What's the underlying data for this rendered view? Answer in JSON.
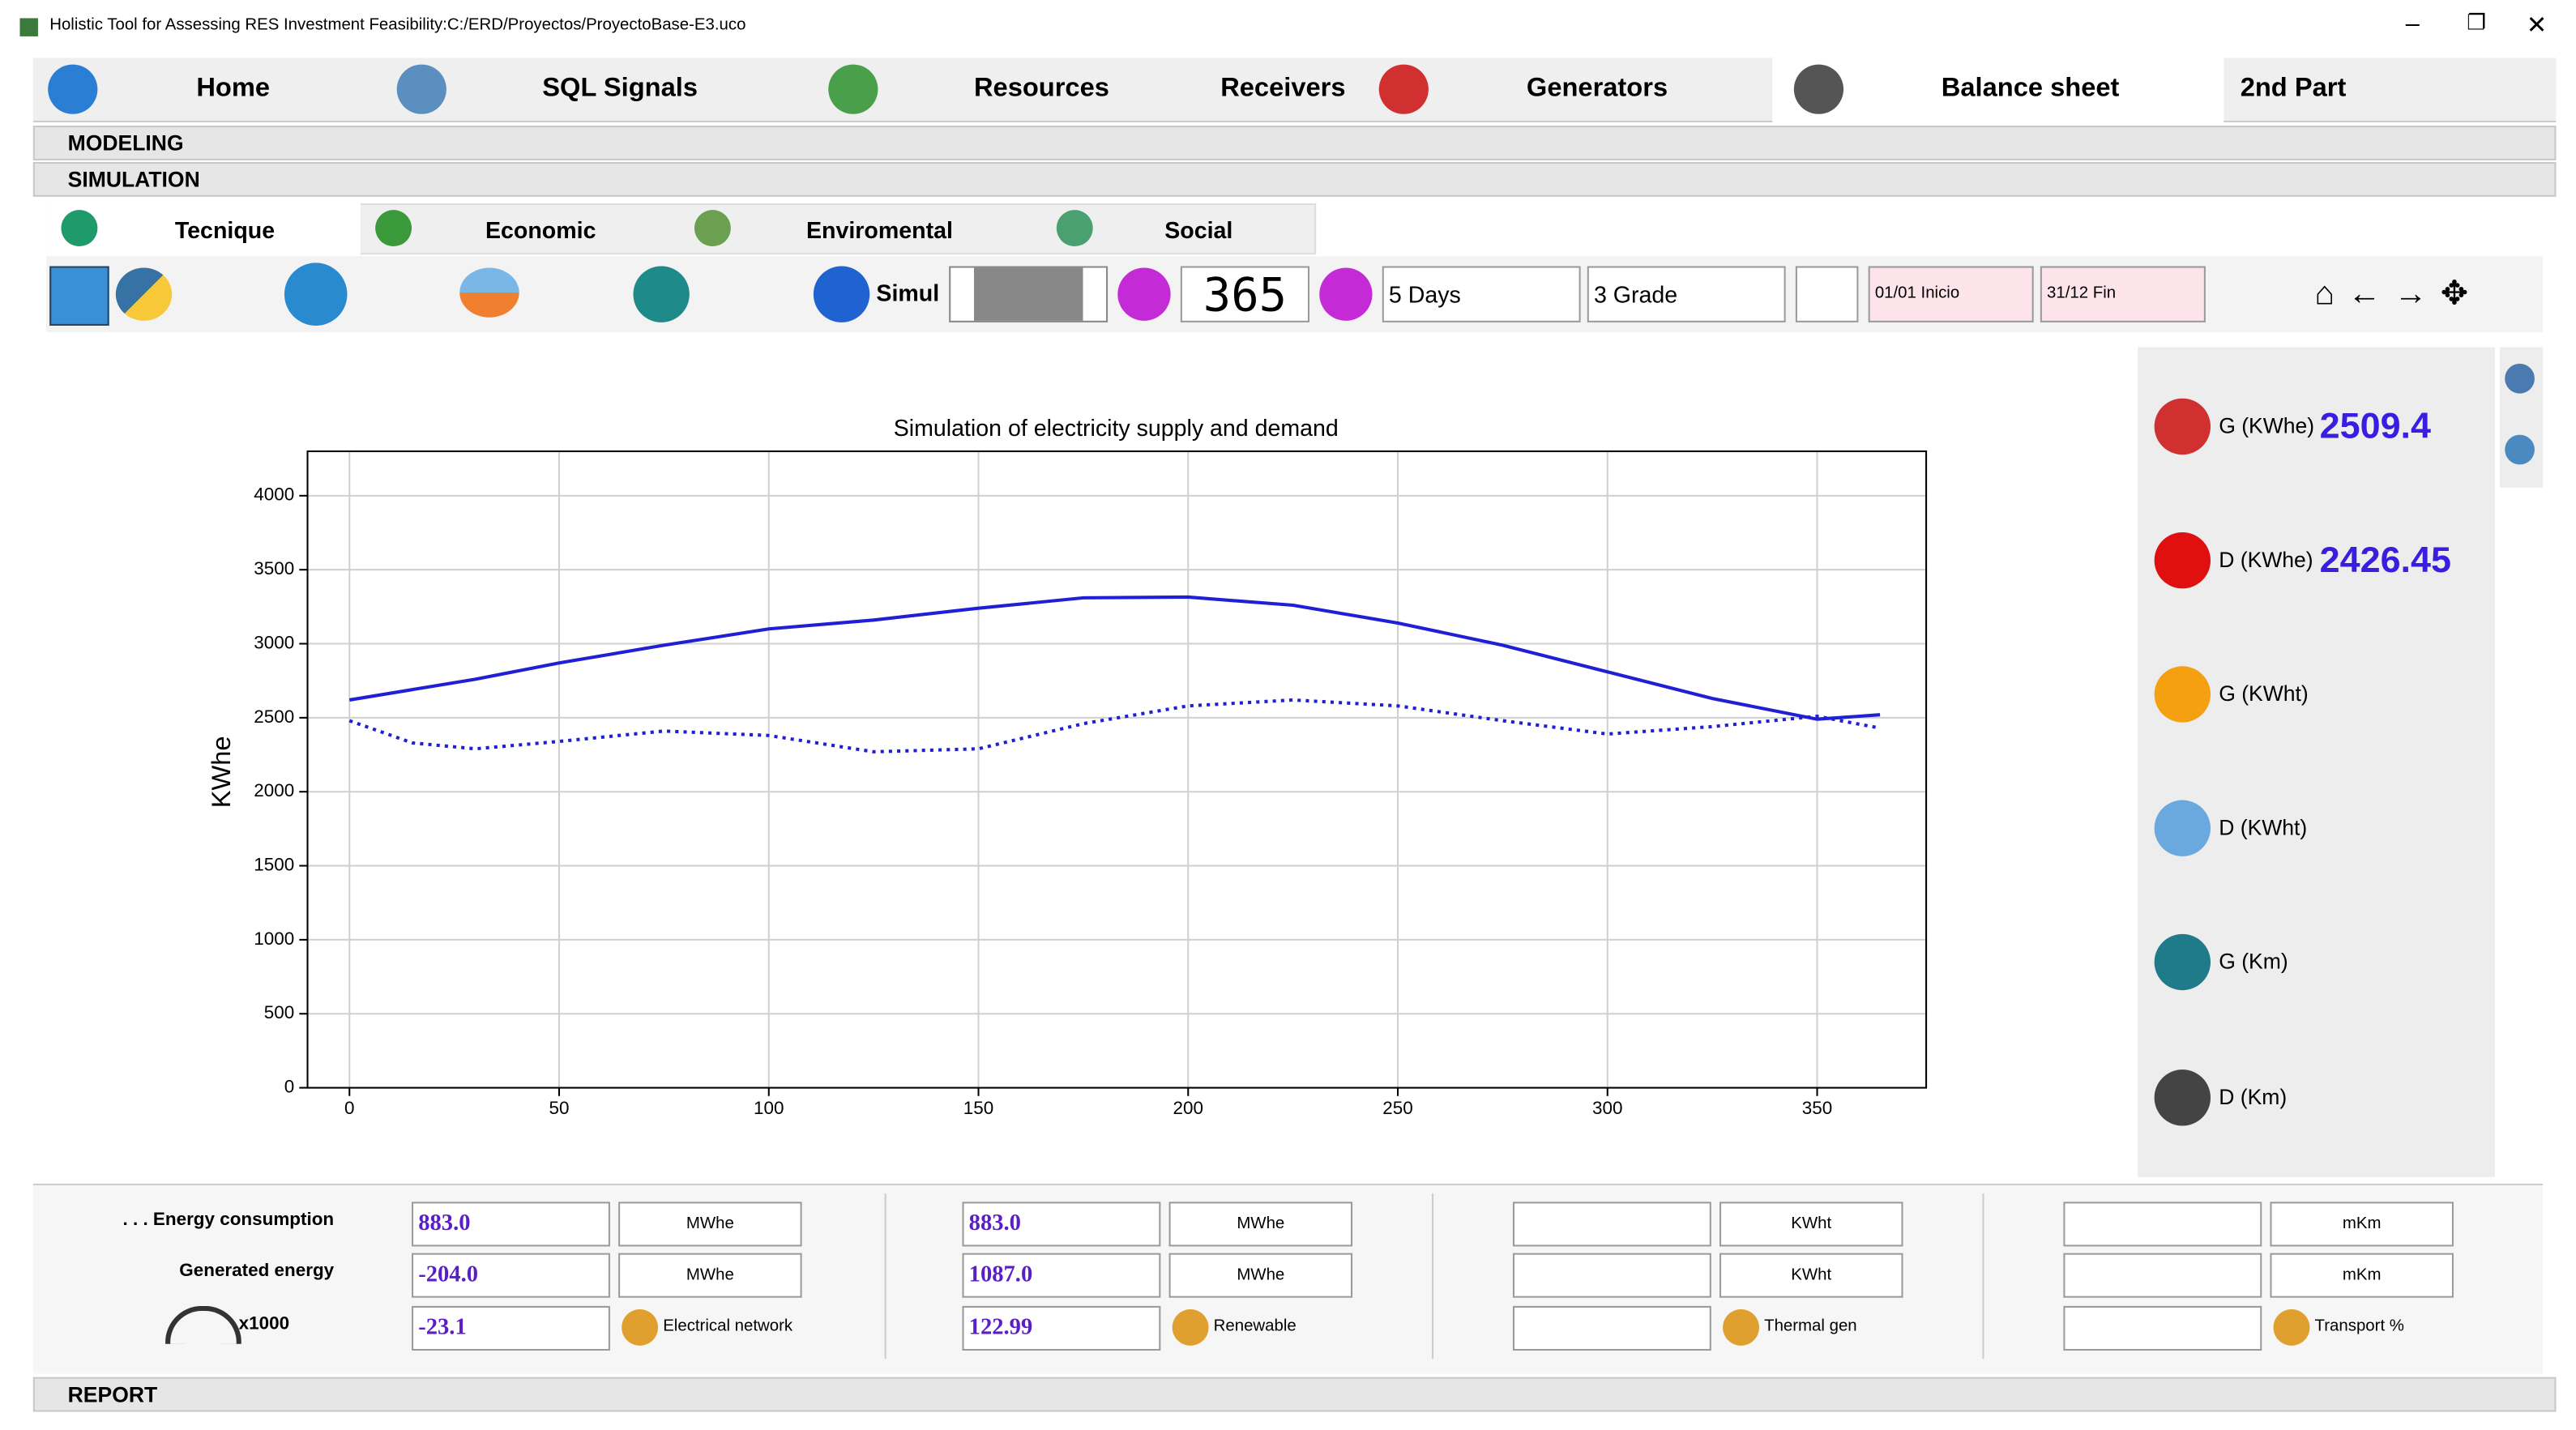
{
  "window": {
    "title": "Holistic Tool for Assessing RES Investment Feasibility:C:/ERD/Proyectos/ProyectoBase-E3.uco"
  },
  "main_tabs": [
    "Home",
    "SQL Signals",
    "Resources",
    "Receivers",
    "Generators",
    "Balance sheet",
    "2nd Part"
  ],
  "sections": [
    "MODELING",
    "SIMULATION",
    "REPORT"
  ],
  "sub_tabs": [
    "Tecnique",
    "Economic",
    "Enviromental",
    "Social"
  ],
  "toolbar": {
    "simul": "Simul",
    "days_counter": "365",
    "step": "5 Days",
    "grade": "3 Grade",
    "start": "01/01 Inicio",
    "end": "31/12 Fin"
  },
  "indicators": [
    {
      "label": "G (KWhe)",
      "value": "2509.4"
    },
    {
      "label": "D (KWhe)",
      "value": "2426.45"
    },
    {
      "label": "G (KWht)"
    },
    {
      "label": "D (KWht)"
    },
    {
      "label": "G (Km)"
    },
    {
      "label": "D (Km)"
    }
  ],
  "summary": {
    "row_labels": [
      ". . . Energy consumption",
      "Generated energy",
      "x1000"
    ],
    "groups": [
      {
        "values": [
          "883.0",
          "-204.0",
          "-23.1"
        ],
        "units": [
          "MWhe",
          "MWhe",
          "Electrical network"
        ]
      },
      {
        "values": [
          "883.0",
          "1087.0",
          "122.99"
        ],
        "units": [
          "MWhe",
          "MWhe",
          "Renewable"
        ]
      },
      {
        "units": [
          "KWht",
          "KWht",
          "Thermal gen"
        ]
      },
      {
        "units": [
          "mKm",
          "mKm",
          "Transport %"
        ]
      }
    ]
  },
  "chart_data": {
    "type": "line",
    "title": "Simulation of electricity supply and demand",
    "y_label": "KWhe",
    "x": [
      0,
      15,
      30,
      50,
      75,
      100,
      125,
      150,
      175,
      200,
      225,
      250,
      275,
      300,
      325,
      350,
      365
    ],
    "series": [
      {
        "color": "#1f1fd6",
        "style": "solid",
        "values": [
          2620,
          2690,
          2760,
          2870,
          2990,
          3100,
          3160,
          3240,
          3310,
          3315,
          3260,
          3140,
          2990,
          2810,
          2630,
          2490,
          2520
        ]
      },
      {
        "color": "#1f1fd6",
        "style": "dotted",
        "values": [
          2480,
          2330,
          2290,
          2340,
          2410,
          2380,
          2270,
          2290,
          2460,
          2580,
          2620,
          2580,
          2480,
          2390,
          2440,
          2510,
          2430
        ]
      }
    ],
    "xlim": [
      -10,
      376
    ],
    "ylim": [
      0,
      4300
    ],
    "xticks": [
      0,
      50,
      100,
      150,
      200,
      250,
      300,
      350
    ],
    "yticks": [
      0,
      500,
      1000,
      1500,
      2000,
      2500,
      3000,
      3500,
      4000
    ],
    "grid": true
  }
}
